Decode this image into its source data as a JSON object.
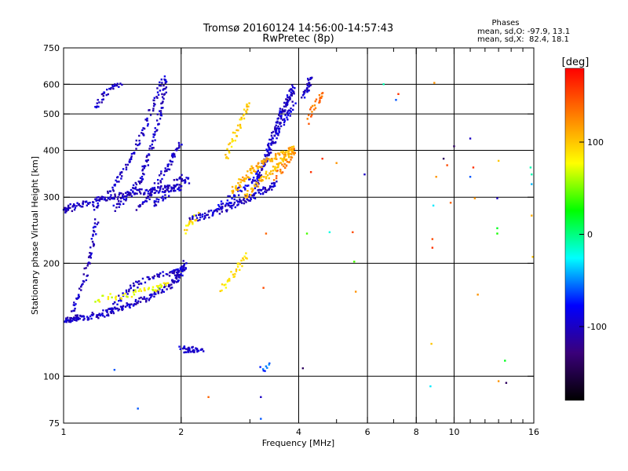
{
  "chart_data": {
    "type": "scatter",
    "title": "Tromsø 20160124 14:56:00-14:57:43",
    "subtitle": "RwPretec (8p)",
    "xlabel": "Frequency [MHz]",
    "ylabel": "Stationary phase Virtual Height [km]",
    "x_scale": "log",
    "y_scale": "log",
    "xlim": [
      1,
      16
    ],
    "ylim": [
      75,
      750
    ],
    "x_ticks": [
      1,
      2,
      4,
      6,
      8,
      10,
      16
    ],
    "x_tick_labels": [
      "1",
      "2",
      "4",
      "6",
      "8",
      "10",
      "16"
    ],
    "x_minor_ticks": [
      3,
      5,
      7,
      9,
      11,
      12,
      13,
      14,
      15
    ],
    "y_ticks": [
      75,
      100,
      200,
      300,
      400,
      500,
      600,
      750
    ],
    "y_tick_labels": [
      "75",
      "100",
      "200",
      "300",
      "400",
      "500",
      "600",
      "750"
    ],
    "grid": true,
    "stats": {
      "heading": "Phases",
      "line1": "mean, sd,O: -97.9, 13.1",
      "line2": "mean, sd,X:  82.4, 18.1"
    },
    "colorbar": {
      "label": "[deg]",
      "range": [
        -180,
        180
      ],
      "ticks": [
        100,
        0,
        -100
      ],
      "tick_labels": [
        "100",
        "0",
        "-100"
      ],
      "colors": [
        "#ff0000",
        "#ff7f00",
        "#ffff00",
        "#00ff00",
        "#00ffff",
        "#0000ff",
        "#3a007a",
        "#000000"
      ]
    },
    "traces": [
      {
        "x": [
          1.0,
          1.05,
          1.1,
          1.2,
          1.3,
          1.4,
          1.55,
          1.7,
          1.85,
          1.95,
          2.0,
          2.05
        ],
        "y": [
          141,
          142,
          143,
          145,
          148,
          152,
          158,
          165,
          173,
          182,
          190,
          200
        ],
        "phase": -100,
        "density": 20
      },
      {
        "x": [
          1.05,
          1.08,
          1.12,
          1.15,
          1.18,
          1.2,
          1.22
        ],
        "y": [
          148,
          160,
          175,
          195,
          215,
          240,
          265
        ],
        "phase": -100,
        "density": 10
      },
      {
        "x": [
          1.0,
          1.05,
          1.15,
          1.3,
          1.45,
          1.6,
          1.75,
          1.9,
          2.0
        ],
        "y": [
          275,
          282,
          290,
          298,
          305,
          310,
          315,
          318,
          318
        ],
        "phase": -100,
        "density": 20
      },
      {
        "x": [
          1.2,
          1.3,
          1.4,
          1.5,
          1.6,
          1.7,
          1.78
        ],
        "y": [
          280,
          305,
          340,
          385,
          450,
          530,
          620
        ],
        "phase": -100,
        "density": 16
      },
      {
        "x": [
          1.35,
          1.45,
          1.55,
          1.62,
          1.68,
          1.75,
          1.8,
          1.84
        ],
        "y": [
          280,
          300,
          325,
          360,
          410,
          480,
          560,
          630
        ],
        "phase": -100,
        "density": 16
      },
      {
        "x": [
          1.55,
          1.65,
          1.75,
          1.85,
          1.92,
          2.0
        ],
        "y": [
          280,
          300,
          330,
          360,
          390,
          420
        ],
        "phase": -100,
        "density": 14
      },
      {
        "x": [
          1.7,
          1.8,
          1.9,
          2.0,
          2.1
        ],
        "y": [
          285,
          300,
          320,
          340,
          330
        ],
        "phase": -100,
        "density": 12
      },
      {
        "x": [
          1.2,
          1.25,
          1.3,
          1.35,
          1.4
        ],
        "y": [
          520,
          545,
          570,
          590,
          610
        ],
        "phase": -100,
        "density": 8
      },
      {
        "x": [
          1.3,
          1.4,
          1.5,
          1.6,
          1.75,
          1.9,
          1.98
        ],
        "y": [
          150,
          162,
          172,
          180,
          185,
          188,
          190
        ],
        "phase": -100,
        "density": 12
      },
      {
        "x": [
          2.1,
          2.3,
          2.5,
          2.7,
          2.9,
          3.1,
          3.3,
          3.5
        ],
        "y": [
          262,
          268,
          275,
          285,
          295,
          305,
          315,
          325
        ],
        "phase": -100,
        "density": 18
      },
      {
        "x": [
          2.4,
          2.6,
          2.8,
          3.0,
          3.2
        ],
        "y": [
          275,
          290,
          310,
          330,
          350
        ],
        "phase": -88,
        "density": 12
      },
      {
        "x": [
          3.1,
          3.2,
          3.3,
          3.4,
          3.5,
          3.6,
          3.7,
          3.8,
          3.9
        ],
        "y": [
          320,
          350,
          380,
          420,
          460,
          500,
          530,
          560,
          590
        ],
        "phase": -100,
        "density": 18
      },
      {
        "x": [
          3.3,
          3.45,
          3.6,
          3.75,
          3.9
        ],
        "y": [
          380,
          420,
          460,
          500,
          540
        ],
        "phase": -95,
        "density": 12
      },
      {
        "x": [
          4.1,
          4.2,
          4.25,
          4.3
        ],
        "y": [
          560,
          580,
          600,
          630
        ],
        "phase": -100,
        "density": 10
      },
      {
        "x": [
          2.7,
          2.85,
          3.0,
          3.15,
          3.3,
          3.5,
          3.7,
          3.9
        ],
        "y": [
          310,
          330,
          350,
          365,
          375,
          385,
          395,
          410
        ],
        "phase": 110,
        "density": 16
      },
      {
        "x": [
          2.9,
          3.1,
          3.3,
          3.5,
          3.7,
          3.85
        ],
        "y": [
          300,
          320,
          340,
          360,
          380,
          400
        ],
        "phase": 105,
        "density": 14
      },
      {
        "x": [
          3.5,
          3.65,
          3.8,
          3.95
        ],
        "y": [
          340,
          360,
          380,
          400
        ],
        "phase": 130,
        "density": 10
      },
      {
        "x": [
          2.6,
          2.7,
          2.8,
          2.9,
          3.0
        ],
        "y": [
          380,
          420,
          460,
          500,
          540
        ],
        "phase": 95,
        "density": 10
      },
      {
        "x": [
          4.2,
          4.35,
          4.5,
          4.6
        ],
        "y": [
          480,
          520,
          550,
          570
        ],
        "phase": 135,
        "density": 8
      },
      {
        "x": [
          1.2,
          1.35,
          1.5,
          1.65,
          1.75,
          1.85
        ],
        "y": [
          160,
          163,
          166,
          170,
          172,
          175
        ],
        "phase": 75,
        "density": 10
      },
      {
        "x": [
          2.55,
          2.65,
          2.75,
          2.85,
          2.95
        ],
        "y": [
          170,
          180,
          190,
          200,
          210
        ],
        "phase": 90,
        "density": 8
      },
      {
        "x": [
          2.0,
          2.05,
          2.1,
          2.15,
          2.2,
          2.3
        ],
        "y": [
          118,
          118,
          118,
          118,
          118,
          118
        ],
        "phase": -100,
        "density": 8
      },
      {
        "x": [
          2.05,
          2.1,
          2.15,
          2.2
        ],
        "y": [
          240,
          255,
          260,
          270
        ],
        "phase": 88,
        "density": 6
      },
      {
        "x": [
          3.2,
          3.3,
          3.4
        ],
        "y": [
          104,
          106,
          108
        ],
        "phase": -60,
        "density": 4
      }
    ],
    "sparse_points": [
      {
        "x": 1.35,
        "y": 104,
        "phase": -60
      },
      {
        "x": 1.55,
        "y": 82,
        "phase": -60
      },
      {
        "x": 2.35,
        "y": 88,
        "phase": 140
      },
      {
        "x": 3.2,
        "y": 88,
        "phase": -100
      },
      {
        "x": 3.2,
        "y": 77,
        "phase": -60
      },
      {
        "x": 3.25,
        "y": 172,
        "phase": 150
      },
      {
        "x": 3.3,
        "y": 240,
        "phase": 140
      },
      {
        "x": 4.1,
        "y": 105,
        "phase": -140
      },
      {
        "x": 4.2,
        "y": 240,
        "phase": 40
      },
      {
        "x": 4.3,
        "y": 350,
        "phase": 160
      },
      {
        "x": 4.6,
        "y": 380,
        "phase": 160
      },
      {
        "x": 4.8,
        "y": 242,
        "phase": -20
      },
      {
        "x": 5.0,
        "y": 370,
        "phase": 120
      },
      {
        "x": 5.5,
        "y": 242,
        "phase": 150
      },
      {
        "x": 5.55,
        "y": 202,
        "phase": 40
      },
      {
        "x": 5.6,
        "y": 168,
        "phase": 120
      },
      {
        "x": 5.9,
        "y": 345,
        "phase": -100
      },
      {
        "x": 6.6,
        "y": 600,
        "phase": -10
      },
      {
        "x": 7.2,
        "y": 565,
        "phase": 160
      },
      {
        "x": 7.1,
        "y": 545,
        "phase": -60
      },
      {
        "x": 8.7,
        "y": 94,
        "phase": -30
      },
      {
        "x": 8.75,
        "y": 122,
        "phase": 100
      },
      {
        "x": 8.8,
        "y": 220,
        "phase": 160
      },
      {
        "x": 8.8,
        "y": 232,
        "phase": 150
      },
      {
        "x": 8.85,
        "y": 285,
        "phase": -30
      },
      {
        "x": 8.9,
        "y": 605,
        "phase": 120
      },
      {
        "x": 9.0,
        "y": 340,
        "phase": 120
      },
      {
        "x": 9.4,
        "y": 380,
        "phase": -140
      },
      {
        "x": 9.6,
        "y": 365,
        "phase": 150
      },
      {
        "x": 9.8,
        "y": 290,
        "phase": 140
      },
      {
        "x": 10.0,
        "y": 410,
        "phase": -140
      },
      {
        "x": 11.0,
        "y": 430,
        "phase": -100
      },
      {
        "x": 11.0,
        "y": 340,
        "phase": -60
      },
      {
        "x": 11.2,
        "y": 360,
        "phase": 160
      },
      {
        "x": 11.3,
        "y": 298,
        "phase": 120
      },
      {
        "x": 11.5,
        "y": 165,
        "phase": 120
      },
      {
        "x": 12.9,
        "y": 298,
        "phase": -100
      },
      {
        "x": 12.9,
        "y": 248,
        "phase": 20
      },
      {
        "x": 12.9,
        "y": 240,
        "phase": 30
      },
      {
        "x": 13.0,
        "y": 375,
        "phase": 100
      },
      {
        "x": 13.0,
        "y": 97,
        "phase": 120
      },
      {
        "x": 13.5,
        "y": 110,
        "phase": 20
      },
      {
        "x": 13.6,
        "y": 96,
        "phase": -140
      },
      {
        "x": 15.7,
        "y": 360,
        "phase": -10
      },
      {
        "x": 15.8,
        "y": 345,
        "phase": -10
      },
      {
        "x": 15.8,
        "y": 268,
        "phase": 110
      },
      {
        "x": 15.9,
        "y": 208,
        "phase": 100
      },
      {
        "x": 15.8,
        "y": 325,
        "phase": -40
      }
    ]
  }
}
